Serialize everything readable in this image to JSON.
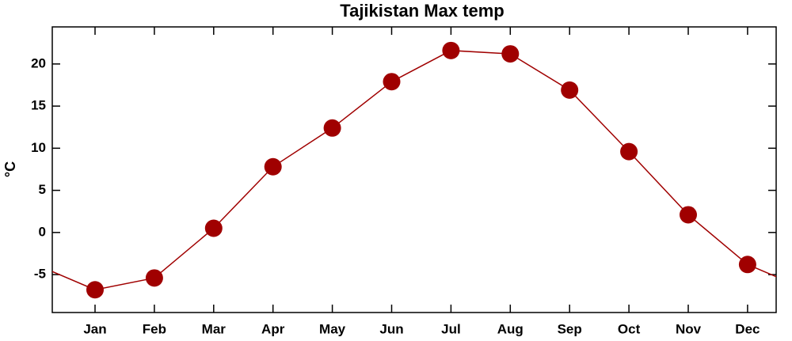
{
  "chart_data": {
    "type": "line",
    "title": "Tajikistan Max temp",
    "y_label": "°C",
    "categories": [
      "Jan",
      "Feb",
      "Mar",
      "Apr",
      "May",
      "Jun",
      "Jul",
      "Aug",
      "Sep",
      "Oct",
      "Nov",
      "Dec"
    ],
    "series": [
      {
        "name": "Max temp",
        "color": "#a00000",
        "values": [
          -6.8,
          -5.4,
          0.5,
          7.8,
          12.4,
          17.9,
          21.6,
          21.2,
          16.9,
          9.6,
          2.1,
          -3.8
        ]
      }
    ],
    "ylim": [
      -9.5,
      24.4
    ],
    "yticks": [
      -5,
      0,
      5,
      10,
      15,
      20
    ],
    "grid": false
  }
}
